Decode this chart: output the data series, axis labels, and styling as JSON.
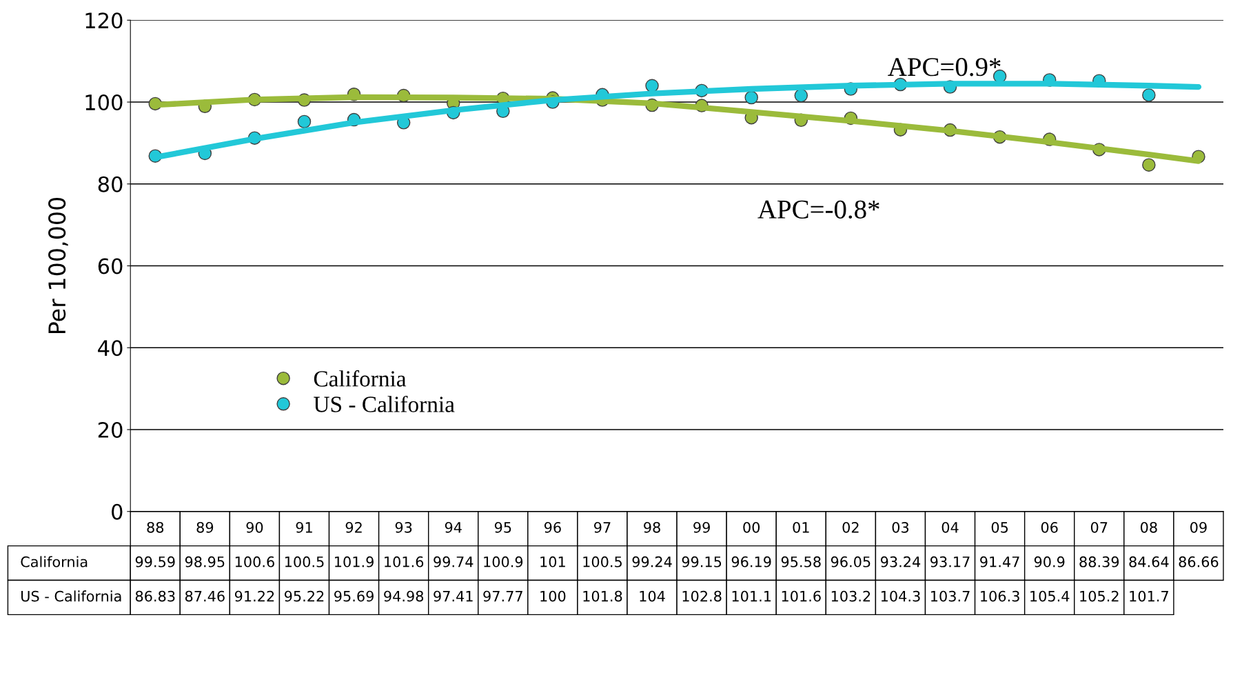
{
  "chart_data": {
    "type": "scatter",
    "ylabel": "Per 100,000",
    "categories": [
      "88",
      "89",
      "90",
      "91",
      "92",
      "93",
      "94",
      "95",
      "96",
      "97",
      "98",
      "99",
      "00",
      "01",
      "02",
      "03",
      "04",
      "05",
      "06",
      "07",
      "08",
      "09"
    ],
    "series": [
      {
        "name": "California",
        "color": "#9bbb3b",
        "values": [
          99.59,
          98.95,
          100.6,
          100.5,
          101.9,
          101.6,
          99.74,
          100.9,
          101,
          100.5,
          99.24,
          99.15,
          96.19,
          95.58,
          96.05,
          93.24,
          93.17,
          91.47,
          90.9,
          88.39,
          84.64,
          86.66
        ],
        "value_labels": [
          "99.59",
          "98.95",
          "100.6",
          "100.5",
          "101.9",
          "101.6",
          "99.74",
          "100.9",
          "101",
          "100.5",
          "99.24",
          "99.15",
          "96.19",
          "95.58",
          "96.05",
          "93.24",
          "93.17",
          "91.47",
          "90.9",
          "88.39",
          "84.64",
          "86.66"
        ]
      },
      {
        "name": "US - California",
        "color": "#22c8d8",
        "values": [
          86.83,
          87.46,
          91.22,
          95.22,
          95.69,
          94.98,
          97.41,
          97.77,
          100,
          101.8,
          104,
          102.8,
          101.1,
          101.6,
          103.2,
          104.3,
          103.7,
          106.3,
          105.4,
          105.2,
          101.7,
          null
        ],
        "value_labels": [
          "86.83",
          "87.46",
          "91.22",
          "95.22",
          "95.69",
          "94.98",
          "97.41",
          "97.77",
          "100",
          "101.8",
          "104",
          "102.8",
          "101.1",
          "101.6",
          "103.2",
          "104.3",
          "103.7",
          "106.3",
          "105.4",
          "105.2",
          "101.7",
          null
        ]
      },
      {
        "type": "line",
        "marker": "none",
        "color": "#9bbb3b",
        "x": [
          "88",
          "90",
          "92",
          "94",
          "96",
          "98",
          "00",
          "02",
          "04",
          "06",
          "08",
          "09"
        ],
        "values": [
          99.3,
          100.6,
          101.2,
          101.1,
          100.8,
          99.7,
          97.6,
          95.4,
          93.0,
          90.2,
          87.2,
          85.6
        ]
      },
      {
        "type": "line",
        "marker": "none",
        "color": "#22c8d8",
        "x": [
          "88",
          "90",
          "92",
          "94",
          "96",
          "98",
          "00",
          "02",
          "04",
          "06",
          "08",
          "09"
        ],
        "values": [
          86.5,
          91.0,
          95.0,
          98.0,
          100.5,
          102.1,
          103.2,
          104.0,
          104.5,
          104.5,
          104.0,
          103.7
        ]
      }
    ],
    "ylim": [
      0,
      120
    ],
    "yticks": [
      0,
      20,
      40,
      60,
      80,
      100,
      120
    ],
    "grid": "y",
    "tick_labels": "y",
    "legend": "left",
    "marker": "circle",
    "annotations": [
      "APC=0.9*",
      "APC=-0.8*"
    ]
  }
}
